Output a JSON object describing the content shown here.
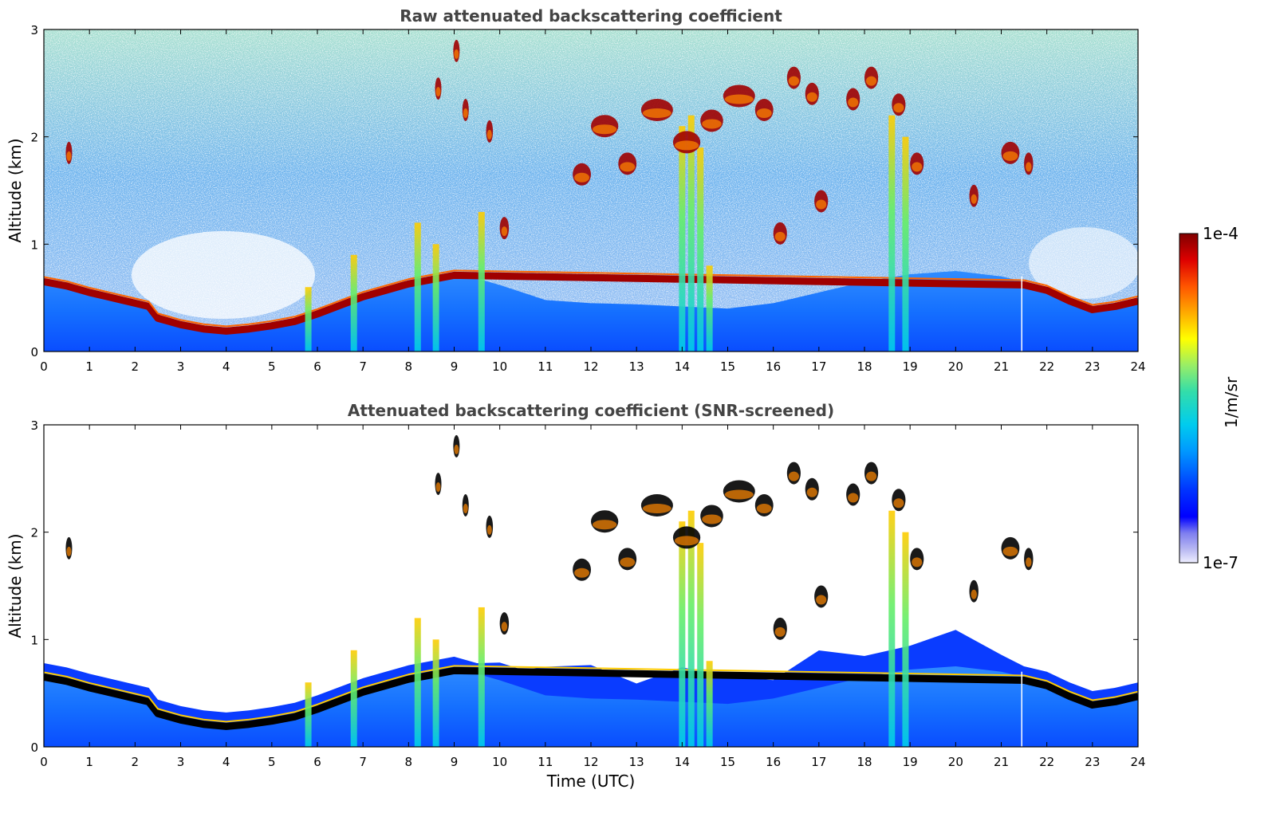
{
  "chart_data": [
    {
      "type": "heatmap",
      "title": "Raw attenuated backscattering coefficient",
      "xlabel": "",
      "ylabel": "Altitude (km)",
      "xlim": [
        0,
        24
      ],
      "ylim": [
        0,
        3
      ],
      "xticks": [
        "0",
        "1",
        "2",
        "3",
        "4",
        "5",
        "6",
        "7",
        "8",
        "9",
        "10",
        "11",
        "12",
        "13",
        "14",
        "15",
        "16",
        "17",
        "18",
        "19",
        "20",
        "21",
        "22",
        "23",
        "24"
      ],
      "yticks": [
        "0",
        "1",
        "2",
        "3"
      ],
      "screened": false
    },
    {
      "type": "heatmap",
      "title": "Attenuated backscattering coefficient (SNR-screened)",
      "xlabel": "Time (UTC)",
      "ylabel": "Altitude (km)",
      "xlim": [
        0,
        24
      ],
      "ylim": [
        0,
        3
      ],
      "xticks": [
        "0",
        "1",
        "2",
        "3",
        "4",
        "5",
        "6",
        "7",
        "8",
        "9",
        "10",
        "11",
        "12",
        "13",
        "14",
        "15",
        "16",
        "17",
        "18",
        "19",
        "20",
        "21",
        "22",
        "23",
        "24"
      ],
      "yticks": [
        "0",
        "1",
        "2",
        "3"
      ],
      "screened": true
    }
  ],
  "colorbar": {
    "label": "1/m/sr",
    "max_label": "1e-4",
    "min_label": "1e-7",
    "scale": "log",
    "colormap": "jet"
  },
  "boundary_layer_top_km": {
    "time": [
      0,
      0.5,
      1,
      1.5,
      2,
      2.3,
      2.5,
      3,
      3.5,
      4,
      4.5,
      5,
      5.5,
      6,
      6.5,
      7,
      7.5,
      8,
      8.5,
      9,
      9.5,
      10,
      10.5,
      11,
      12,
      13,
      14,
      15,
      16,
      17,
      18,
      19,
      20,
      21,
      21.5,
      22,
      22.5,
      23,
      23.5,
      24
    ],
    "altitude": [
      0.68,
      0.64,
      0.58,
      0.53,
      0.48,
      0.45,
      0.34,
      0.28,
      0.24,
      0.22,
      0.24,
      0.27,
      0.31,
      0.38,
      0.46,
      0.54,
      0.6,
      0.66,
      0.7,
      0.74,
      0.68,
      0.62,
      0.55,
      0.48,
      0.45,
      0.44,
      0.42,
      0.4,
      0.45,
      0.55,
      0.65,
      0.72,
      0.75,
      0.7,
      0.65,
      0.6,
      0.5,
      0.42,
      0.45,
      0.5
    ]
  },
  "cloud_layers": [
    {
      "t0": 0.5,
      "t1": 0.6,
      "alt": 1.85
    },
    {
      "t0": 8.6,
      "t1": 8.7,
      "alt": 2.45
    },
    {
      "t0": 9.0,
      "t1": 9.1,
      "alt": 2.8
    },
    {
      "t0": 9.2,
      "t1": 9.3,
      "alt": 2.25
    },
    {
      "t0": 9.7,
      "t1": 9.85,
      "alt": 2.05
    },
    {
      "t0": 10.0,
      "t1": 10.2,
      "alt": 1.15
    },
    {
      "t0": 11.6,
      "t1": 12.0,
      "alt": 1.65
    },
    {
      "t0": 12.0,
      "t1": 12.6,
      "alt": 2.1
    },
    {
      "t0": 12.6,
      "t1": 13.0,
      "alt": 1.75
    },
    {
      "t0": 13.1,
      "t1": 13.8,
      "alt": 2.25
    },
    {
      "t0": 13.8,
      "t1": 14.4,
      "alt": 1.95
    },
    {
      "t0": 14.4,
      "t1": 14.9,
      "alt": 2.15
    },
    {
      "t0": 14.9,
      "t1": 15.6,
      "alt": 2.38
    },
    {
      "t0": 15.6,
      "t1": 16.0,
      "alt": 2.25
    },
    {
      "t0": 16.0,
      "t1": 16.3,
      "alt": 1.1
    },
    {
      "t0": 16.3,
      "t1": 16.6,
      "alt": 2.55
    },
    {
      "t0": 16.7,
      "t1": 17.0,
      "alt": 2.4
    },
    {
      "t0": 16.9,
      "t1": 17.2,
      "alt": 1.4
    },
    {
      "t0": 17.6,
      "t1": 17.9,
      "alt": 2.35
    },
    {
      "t0": 18.0,
      "t1": 18.3,
      "alt": 2.55
    },
    {
      "t0": 18.6,
      "t1": 18.9,
      "alt": 2.3
    },
    {
      "t0": 19.0,
      "t1": 19.3,
      "alt": 1.75
    },
    {
      "t0": 20.3,
      "t1": 20.5,
      "alt": 1.45
    },
    {
      "t0": 21.0,
      "t1": 21.4,
      "alt": 1.85
    },
    {
      "t0": 21.5,
      "t1": 21.7,
      "alt": 1.75
    }
  ],
  "vertical_streaks": [
    {
      "t": 5.8,
      "top": 0.6
    },
    {
      "t": 6.8,
      "top": 0.9
    },
    {
      "t": 8.2,
      "top": 1.2
    },
    {
      "t": 8.6,
      "top": 1.0
    },
    {
      "t": 9.6,
      "top": 1.3
    },
    {
      "t": 14.0,
      "top": 2.1
    },
    {
      "t": 14.2,
      "top": 2.2
    },
    {
      "t": 14.4,
      "top": 1.9
    },
    {
      "t": 14.6,
      "top": 0.8
    },
    {
      "t": 18.6,
      "top": 2.2
    },
    {
      "t": 18.9,
      "top": 2.0
    }
  ]
}
